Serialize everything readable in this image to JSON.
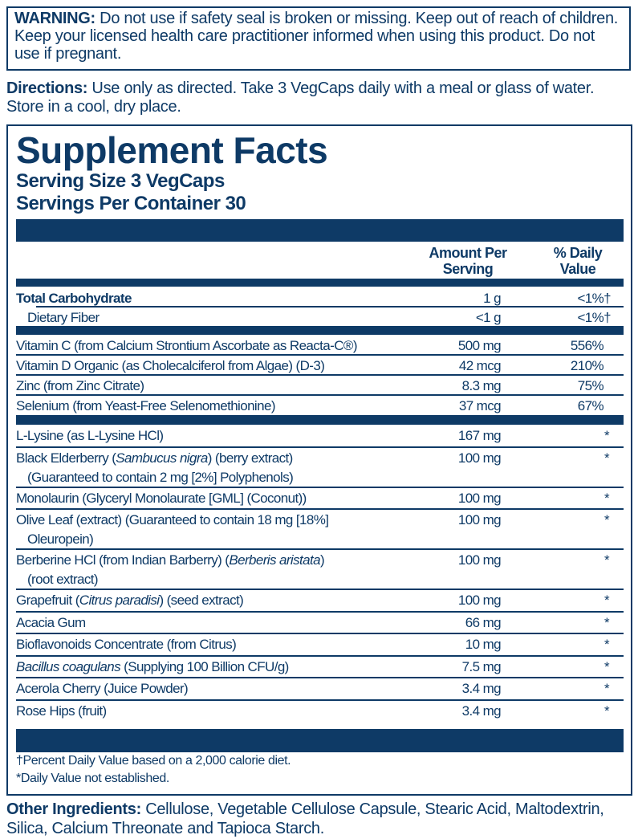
{
  "warning": {
    "label": "WARNING:",
    "text": " Do not use if safety seal is broken or missing. Keep out of reach of children. Keep your licensed health care practitioner informed when using this product. Do not use if pregnant."
  },
  "directions": {
    "label": "Directions:",
    "text": " Use only as directed. Take 3 VegCaps daily with a meal or glass of water. Store in a cool, dry place."
  },
  "facts": {
    "title": "Supplement Facts",
    "serving_size": "Serving Size 3 VegCaps",
    "servings_per_container": "Servings Per Container 30",
    "header_amount": [
      "Amount Per",
      "Serving"
    ],
    "header_dv": [
      "% Daily",
      "Value"
    ],
    "rows": [
      {
        "pre": "Total Carbohydrate",
        "amt": "1 g",
        "dv": "<1%†",
        "bold": true
      },
      {
        "pre": "Dietary Fiber",
        "amt": "<1 g",
        "dv": "<1%†",
        "indent": true
      },
      {
        "pre": "Vitamin C (from Calcium Strontium Ascorbate as Reacta-C®)",
        "amt": "500 mg",
        "dv": "556%"
      },
      {
        "pre": "Vitamin D Organic (as Cholecalciferol from Algae) (D-3)",
        "amt": "42 mcg",
        "dv": "210%"
      },
      {
        "pre": "Zinc (from Zinc Citrate)",
        "amt": "8.3 mg",
        "dv": "75%"
      },
      {
        "pre": "Selenium (from Yeast-Free Selenomethionine)",
        "amt": "37 mcg",
        "dv": "67%"
      },
      {
        "pre": "L-Lysine (as L-Lysine HCl)",
        "amt": "167 mg",
        "dv": "*"
      },
      {
        "pre": "Black Elderberry (",
        "it": "Sambucus nigra",
        "post": ") (berry extract)",
        "line2": "(Guaranteed to contain 2 mg [2%] Polyphenols)",
        "amt": "100 mg",
        "dv": "*"
      },
      {
        "pre": "Monolaurin (Glyceryl Monolaurate [GML] (Coconut))",
        "amt": "100 mg",
        "dv": "*"
      },
      {
        "pre": "Olive Leaf (extract) (Guaranteed to contain 18 mg [18%]",
        "line2": "Oleuropein)",
        "amt": "100 mg",
        "dv": "*"
      },
      {
        "pre": "Berberine HCl (from Indian Barberry) (",
        "it": "Berberis aristata",
        "post": ")",
        "line2": "(root extract)",
        "amt": "100 mg",
        "dv": "*"
      },
      {
        "pre": "Grapefruit (",
        "it": "Citrus paradisi",
        "post": ") (seed extract)",
        "amt": "100 mg",
        "dv": "*"
      },
      {
        "pre": "Acacia Gum",
        "amt": "66 mg",
        "dv": "*"
      },
      {
        "pre": "Bioflavonoids Concentrate (from Citrus)",
        "amt": "10 mg",
        "dv": "*"
      },
      {
        "it": "Bacillus coagulans",
        "post": " (Supplying 100 Billion CFU/g)",
        "amt": "7.5 mg",
        "dv": "*"
      },
      {
        "pre": "Acerola Cherry (Juice Powder)",
        "amt": "3.4 mg",
        "dv": "*"
      },
      {
        "pre": "Rose Hips (fruit)",
        "amt": "3.4 mg",
        "dv": "*"
      }
    ],
    "footnotes": [
      "†Percent Daily Value based on a 2,000 calorie diet.",
      "*Daily Value not established."
    ]
  },
  "other_ingredients": {
    "label": "Other Ingredients:",
    "text": " Cellulose, Vegetable Cellulose Capsule, Stearic Acid, Maltodextrin, Silica, Calcium Threonate and Tapioca Starch."
  },
  "colors": {
    "text": "#0e3a66"
  }
}
